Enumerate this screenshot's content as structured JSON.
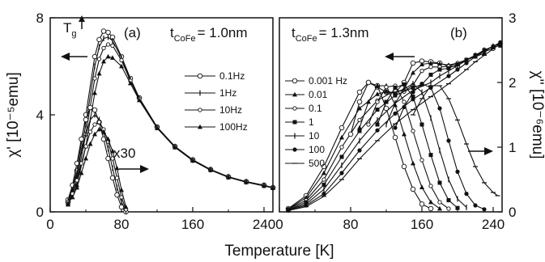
{
  "chart_data": [
    {
      "panel_label": "(a)",
      "type": "line",
      "title_text": "t",
      "title_sub": "CoFe",
      "title_value": "= 1.0nm",
      "tg_label": "T",
      "tg_sub": "g",
      "scale_note": "x30",
      "xlabel": "Temperature [K]",
      "ylabel": "χ' [10⁻⁵emu]",
      "xlim": [
        0,
        250
      ],
      "ylim": [
        0,
        8
      ],
      "x_ticks": [
        "0",
        "80",
        "160",
        "240"
      ],
      "x_tick_values": [
        0,
        80,
        160,
        240
      ],
      "y_ticks": [
        "0",
        "4",
        "8"
      ],
      "y_tick_values": [
        0,
        4,
        8
      ],
      "legend": [
        "0.1Hz",
        "1Hz",
        "10Hz",
        "100Hz"
      ],
      "series": [
        {
          "name": "0.1Hz",
          "axis": "left",
          "x": [
            20,
            30,
            40,
            50,
            55,
            60,
            65,
            70,
            80,
            90,
            100,
            120,
            140,
            160,
            180,
            200,
            220,
            240,
            250
          ],
          "values": [
            0.4,
            1.7,
            4.0,
            6.4,
            7.1,
            7.45,
            7.4,
            7.2,
            6.4,
            5.5,
            4.7,
            3.5,
            2.7,
            2.15,
            1.75,
            1.45,
            1.25,
            1.1,
            1.0
          ]
        },
        {
          "name": "1Hz",
          "axis": "left",
          "x": [
            20,
            30,
            40,
            50,
            55,
            60,
            65,
            70,
            80,
            90,
            100,
            120,
            140,
            160,
            180,
            200,
            220,
            240,
            250
          ],
          "values": [
            0.4,
            1.5,
            3.6,
            6.0,
            6.8,
            7.15,
            7.2,
            7.05,
            6.35,
            5.45,
            4.68,
            3.48,
            2.68,
            2.13,
            1.74,
            1.44,
            1.24,
            1.09,
            1.0
          ]
        },
        {
          "name": "10Hz",
          "axis": "left",
          "x": [
            20,
            30,
            40,
            50,
            55,
            60,
            65,
            70,
            80,
            90,
            100,
            120,
            140,
            160,
            180,
            200,
            220,
            240,
            250
          ],
          "values": [
            0.35,
            1.3,
            3.2,
            5.5,
            6.3,
            6.75,
            6.9,
            6.85,
            6.25,
            5.4,
            4.65,
            3.47,
            2.67,
            2.12,
            1.73,
            1.43,
            1.23,
            1.08,
            0.99
          ]
        },
        {
          "name": "100Hz",
          "axis": "left",
          "x": [
            20,
            30,
            40,
            50,
            55,
            60,
            65,
            70,
            80,
            90,
            100,
            120,
            140,
            160,
            180,
            200,
            220,
            240,
            250
          ],
          "values": [
            0.3,
            1.1,
            2.7,
            4.9,
            5.7,
            6.2,
            6.4,
            6.35,
            6.0,
            5.3,
            4.6,
            3.45,
            2.66,
            2.11,
            1.72,
            1.42,
            1.22,
            1.07,
            0.98
          ]
        },
        {
          "name": "",
          "axis": "right",
          "x": [
            20,
            25,
            30,
            35,
            40,
            45,
            50,
            55,
            60,
            65,
            70,
            75,
            80,
            85
          ],
          "values": [
            0.5,
            1.1,
            2.0,
            3.0,
            3.8,
            4.3,
            4.2,
            3.7,
            3.0,
            2.2,
            1.4,
            0.7,
            0.2,
            0.0
          ]
        },
        {
          "name": "",
          "axis": "right",
          "x": [
            20,
            25,
            30,
            35,
            40,
            45,
            50,
            55,
            60,
            65,
            70,
            75,
            80,
            85
          ],
          "values": [
            0.45,
            0.9,
            1.6,
            2.5,
            3.2,
            3.8,
            4.0,
            3.8,
            3.3,
            2.6,
            1.8,
            1.0,
            0.4,
            0.05
          ]
        },
        {
          "name": "",
          "axis": "right",
          "x": [
            20,
            25,
            30,
            35,
            40,
            45,
            50,
            55,
            60,
            65,
            70,
            75,
            80,
            85
          ],
          "values": [
            0.4,
            0.75,
            1.3,
            2.0,
            2.7,
            3.3,
            3.6,
            3.7,
            3.4,
            2.9,
            2.2,
            1.4,
            0.6,
            0.1
          ]
        },
        {
          "name": "",
          "axis": "right",
          "x": [
            20,
            25,
            30,
            35,
            40,
            45,
            50,
            55,
            60,
            65,
            70,
            75,
            80,
            85
          ],
          "values": [
            0.35,
            0.6,
            1.0,
            1.6,
            2.2,
            2.8,
            3.2,
            3.4,
            3.3,
            3.0,
            2.5,
            1.8,
            0.9,
            0.2
          ]
        }
      ]
    },
    {
      "panel_label": "(b)",
      "type": "line",
      "title_text": "t",
      "title_sub": "CoFe",
      "title_value": "= 1.3nm",
      "xlabel": "Temperature [K]",
      "ylabel": "χ'' [10⁻⁶emu]",
      "xlim": [
        0,
        250
      ],
      "ylim": [
        0,
        3
      ],
      "x_ticks": [
        "0",
        "80",
        "160",
        "240"
      ],
      "x_tick_values": [
        0,
        80,
        160,
        240
      ],
      "y_ticks": [
        "0",
        "1",
        "2",
        "3"
      ],
      "y_tick_values": [
        0,
        1,
        2,
        3
      ],
      "legend": [
        "0.001 Hz",
        "0.01",
        "0.1",
        "1",
        "10",
        "100",
        "500"
      ],
      "series_real": [
        {
          "name": "0.001 Hz",
          "x": [
            10,
            30,
            50,
            70,
            90,
            100,
            110,
            120,
            130,
            140,
            150,
            160,
            170,
            180,
            190,
            200
          ],
          "values": [
            0.05,
            0.25,
            0.7,
            1.3,
            1.85,
            2.0,
            1.93,
            1.85,
            1.84,
            2.0,
            2.3,
            2.33,
            2.32,
            2.3,
            2.25,
            2.25
          ]
        },
        {
          "name": "0.01",
          "x": [
            10,
            30,
            50,
            70,
            90,
            110,
            120,
            130,
            140,
            150,
            160,
            170,
            180,
            190,
            200,
            210,
            220,
            230
          ],
          "values": [
            0.04,
            0.22,
            0.6,
            1.15,
            1.6,
            1.82,
            1.86,
            1.84,
            1.9,
            2.15,
            2.28,
            2.3,
            2.29,
            2.27,
            2.3,
            2.35,
            2.4,
            2.45
          ]
        },
        {
          "name": "0.1",
          "x": [
            10,
            30,
            50,
            70,
            90,
            110,
            130,
            140,
            150,
            160,
            170,
            180,
            190,
            200,
            210,
            220,
            230,
            240
          ],
          "values": [
            0.04,
            0.18,
            0.5,
            1.0,
            1.42,
            1.72,
            1.88,
            1.86,
            1.96,
            2.18,
            2.24,
            2.24,
            2.25,
            2.3,
            2.35,
            2.42,
            2.48,
            2.52
          ]
        },
        {
          "name": "1",
          "x": [
            10,
            30,
            50,
            70,
            90,
            110,
            130,
            150,
            160,
            170,
            180,
            190,
            200,
            210,
            220,
            230,
            240,
            248
          ],
          "values": [
            0.03,
            0.15,
            0.42,
            0.85,
            1.25,
            1.58,
            1.8,
            1.92,
            1.97,
            2.12,
            2.2,
            2.22,
            2.28,
            2.35,
            2.42,
            2.5,
            2.55,
            2.57
          ]
        },
        {
          "name": "10",
          "x": [
            10,
            30,
            50,
            70,
            90,
            110,
            130,
            150,
            170,
            180,
            190,
            200,
            210,
            220,
            230,
            240,
            248
          ],
          "values": [
            0.03,
            0.12,
            0.35,
            0.72,
            1.1,
            1.42,
            1.68,
            1.88,
            2.0,
            2.1,
            2.18,
            2.26,
            2.34,
            2.42,
            2.5,
            2.56,
            2.6
          ]
        },
        {
          "name": "100",
          "x": [
            10,
            30,
            50,
            70,
            90,
            110,
            130,
            150,
            170,
            190,
            200,
            210,
            220,
            230,
            240,
            248
          ],
          "values": [
            0.02,
            0.1,
            0.28,
            0.6,
            0.95,
            1.26,
            1.52,
            1.74,
            1.92,
            2.1,
            2.2,
            2.3,
            2.4,
            2.48,
            2.56,
            2.62
          ]
        },
        {
          "name": "500",
          "x": [
            10,
            30,
            50,
            70,
            90,
            110,
            130,
            150,
            170,
            190,
            210,
            220,
            230,
            240,
            248
          ],
          "values": [
            0.02,
            0.08,
            0.24,
            0.5,
            0.82,
            1.1,
            1.36,
            1.58,
            1.78,
            1.98,
            2.2,
            2.32,
            2.42,
            2.52,
            2.6
          ]
        }
      ],
      "series_imag": [
        {
          "name": "0.001 Hz",
          "x": [
            80,
            90,
            100,
            110,
            120,
            130,
            140,
            150,
            160,
            170
          ],
          "values": [
            1.2,
            1.7,
            2.0,
            1.95,
            1.6,
            1.15,
            0.7,
            0.35,
            0.12,
            0.05
          ]
        },
        {
          "name": "0.01",
          "x": [
            90,
            100,
            110,
            120,
            130,
            140,
            150,
            160,
            170,
            180
          ],
          "values": [
            1.3,
            1.7,
            1.95,
            1.95,
            1.65,
            1.2,
            0.75,
            0.38,
            0.15,
            0.05
          ]
        },
        {
          "name": "0.1",
          "x": [
            100,
            110,
            120,
            130,
            140,
            150,
            160,
            170,
            180,
            190
          ],
          "values": [
            1.35,
            1.7,
            1.93,
            1.95,
            1.7,
            1.25,
            0.8,
            0.4,
            0.15,
            0.05
          ]
        },
        {
          "name": "1",
          "x": [
            110,
            120,
            130,
            140,
            150,
            160,
            170,
            180,
            190,
            200
          ],
          "values": [
            1.35,
            1.7,
            1.92,
            1.97,
            1.78,
            1.35,
            0.88,
            0.45,
            0.18,
            0.06
          ]
        },
        {
          "name": "10",
          "x": [
            120,
            130,
            140,
            150,
            160,
            170,
            180,
            190,
            200,
            210
          ],
          "values": [
            1.35,
            1.68,
            1.9,
            1.98,
            1.85,
            1.45,
            0.95,
            0.5,
            0.2,
            0.07
          ]
        },
        {
          "name": "100",
          "x": [
            130,
            140,
            150,
            160,
            170,
            180,
            190,
            200,
            210,
            220,
            230
          ],
          "values": [
            1.3,
            1.62,
            1.85,
            1.98,
            1.92,
            1.6,
            1.1,
            0.62,
            0.28,
            0.1,
            0.04
          ]
        },
        {
          "name": "500",
          "x": [
            150,
            160,
            170,
            180,
            190,
            200,
            210,
            220,
            230,
            240,
            245
          ],
          "values": [
            1.5,
            1.75,
            1.95,
            1.95,
            1.75,
            1.42,
            1.05,
            0.7,
            0.45,
            0.3,
            0.25
          ]
        }
      ]
    }
  ]
}
